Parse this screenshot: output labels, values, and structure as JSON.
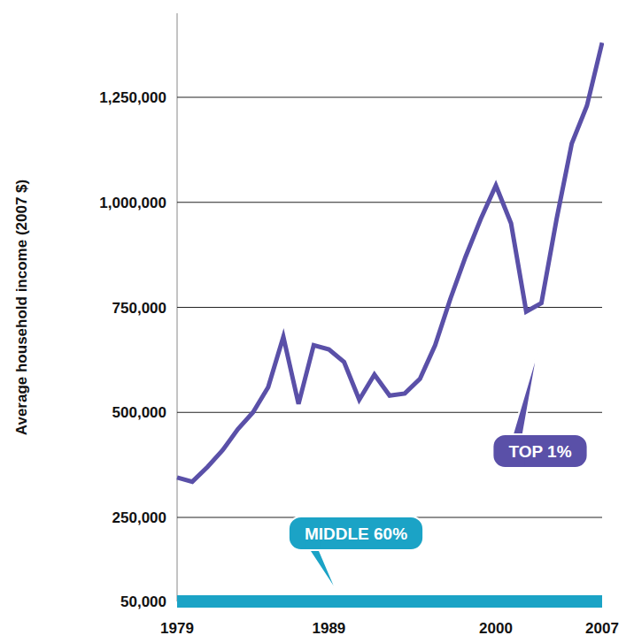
{
  "chart_data": {
    "type": "line",
    "y_label": "Average household income (2007 $)",
    "x": [
      1979,
      1980,
      1981,
      1982,
      1983,
      1984,
      1985,
      1986,
      1987,
      1988,
      1989,
      1990,
      1991,
      1992,
      1993,
      1994,
      1995,
      1996,
      1997,
      1998,
      1999,
      2000,
      2001,
      2002,
      2003,
      2004,
      2005,
      2006,
      2007
    ],
    "series": [
      {
        "name": "TOP 1%",
        "color": "#5a50a8",
        "values": [
          345000,
          335000,
          370000,
          410000,
          460000,
          500000,
          560000,
          680000,
          520000,
          660000,
          650000,
          620000,
          530000,
          590000,
          540000,
          545000,
          580000,
          660000,
          770000,
          870000,
          960000,
          1040000,
          950000,
          740000,
          760000,
          960000,
          1140000,
          1230000,
          1380000
        ]
      },
      {
        "name": "MIDDLE 60%",
        "color": "#1ba3c6",
        "values": [
          50000,
          50000,
          50000,
          50000,
          50000,
          50000,
          50000,
          50000,
          50000,
          50000,
          50000,
          50000,
          50000,
          50000,
          50000,
          50000,
          50000,
          50000,
          50000,
          50000,
          50000,
          50000,
          50000,
          50000,
          50000,
          50000,
          50000,
          50000,
          50000
        ]
      }
    ],
    "xlim": [
      1979,
      2007
    ],
    "xticks": [
      1979,
      1989,
      2000,
      2007
    ],
    "ylim": [
      50000,
      1450000
    ],
    "yticks": [
      {
        "value": 50000,
        "label": "50,000"
      },
      {
        "value": 250000,
        "label": "250,000"
      },
      {
        "value": 500000,
        "label": "500,000"
      },
      {
        "value": 750000,
        "label": "750,000"
      },
      {
        "value": 1000000,
        "label": "1,000,000"
      },
      {
        "value": 1250000,
        "label": "1,250,000"
      }
    ],
    "grid": true
  }
}
